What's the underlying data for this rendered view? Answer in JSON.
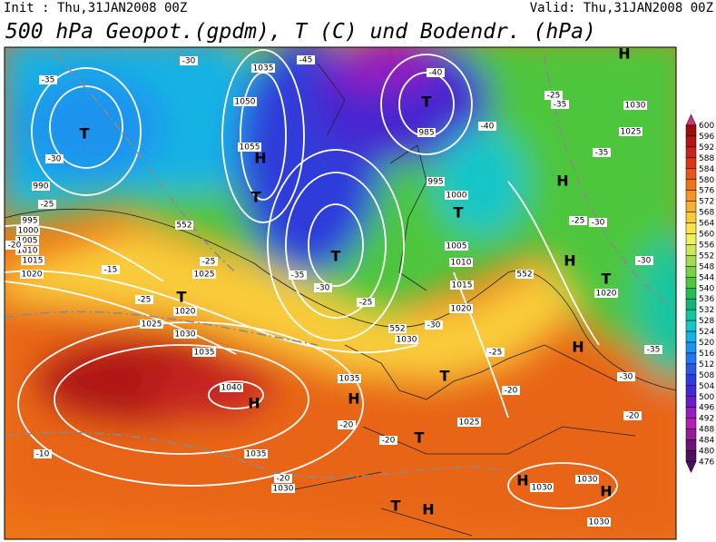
{
  "header": {
    "init": "Init : Thu,31JAN2008 00Z",
    "valid": "Valid: Thu,31JAN2008 00Z",
    "title": "500 hPa Geopot.(gpdm), T (C) und Bodendr. (hPa)"
  },
  "colorbar": {
    "levels": [
      600,
      596,
      592,
      588,
      584,
      580,
      576,
      572,
      568,
      564,
      560,
      556,
      552,
      548,
      544,
      540,
      536,
      532,
      528,
      524,
      520,
      516,
      512,
      508,
      504,
      500,
      496,
      492,
      488,
      484,
      480,
      476
    ],
    "colors": [
      "#d2326e",
      "#9a0e0e",
      "#b01818",
      "#c42424",
      "#d83616",
      "#e4561a",
      "#ee7418",
      "#f39426",
      "#f7b030",
      "#f9cc3a",
      "#f9e24a",
      "#eef05e",
      "#cde85a",
      "#a6da50",
      "#7ad046",
      "#4ec63e",
      "#28bc52",
      "#16b27a",
      "#16c6a0",
      "#16c6c8",
      "#16b2e4",
      "#1e94ee",
      "#2876ee",
      "#2a58e4",
      "#2e3cda",
      "#4628d0",
      "#6c1ec6",
      "#941ebc",
      "#b21eb2",
      "#941e94",
      "#6c1476",
      "#4e105e"
    ]
  },
  "map_labels": [
    "H",
    "1040",
    "H",
    "H",
    "T",
    "T",
    "H",
    "T",
    "T",
    "H",
    "T",
    "H",
    "T",
    "T",
    "T",
    "T",
    "H",
    "H",
    "T",
    "H",
    "H",
    "1035",
    "1055",
    "1050",
    "990",
    "995",
    "1000",
    "1005",
    "1010",
    "1015",
    "1020",
    "1025",
    "1030",
    "1035",
    "1035",
    "1035",
    "1030",
    "1025",
    "1030",
    "1020",
    "1015",
    "1010",
    "1005",
    "1000",
    "995",
    "985",
    "1030",
    "1025",
    "1020",
    "1030",
    "1030",
    "1030",
    "-30",
    "-45",
    "-40",
    "-35",
    "-30",
    "-25",
    "-20",
    "-15",
    "-25",
    "-25",
    "-35",
    "-30",
    "-25",
    "-30",
    "-25",
    "-20",
    "-20",
    "-20",
    "-20",
    "-10",
    "-25",
    "-35",
    "-40",
    "-35",
    "-25",
    "-30",
    "-30",
    "-35",
    "-30",
    "-20",
    "1020",
    "1025",
    "552",
    "552",
    "552"
  ]
}
